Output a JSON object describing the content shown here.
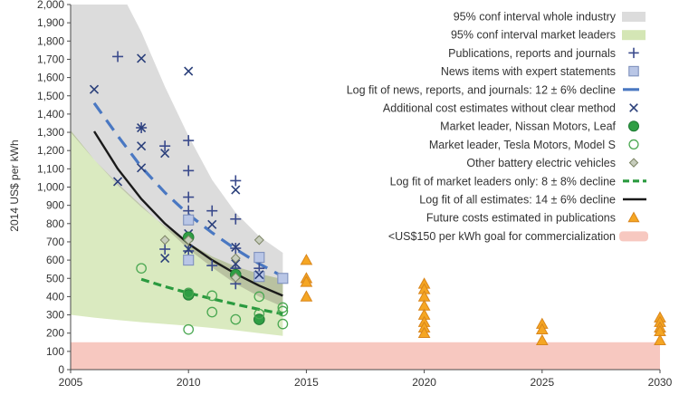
{
  "chart_data": {
    "type": "scatter",
    "title": "",
    "xlabel": "",
    "ylabel": "2014 US$ per kWh",
    "xlim": [
      2005,
      2030
    ],
    "ylim": [
      0,
      2000
    ],
    "x_ticks": [
      2005,
      2010,
      2015,
      2020,
      2025,
      2030
    ],
    "x_tick_labels": [
      "2005",
      "2010",
      "2015",
      "2020",
      "2025",
      "2030"
    ],
    "y_ticks": [
      0,
      100,
      200,
      300,
      400,
      500,
      600,
      700,
      800,
      900,
      1000,
      1100,
      1200,
      1300,
      1400,
      1500,
      1600,
      1700,
      1800,
      1900,
      2000
    ],
    "y_tick_labels": [
      "0",
      "100",
      "200",
      "300",
      "400",
      "500",
      "600",
      "700",
      "800",
      "900",
      "1,000",
      "1,100",
      "1,200",
      "1,300",
      "1,400",
      "1,500",
      "1,600",
      "1,700",
      "1,800",
      "1,900",
      "2,000"
    ],
    "grid": false,
    "legend_position": "top-right",
    "legend": [
      {
        "key": "band_industry",
        "label": "95% conf interval whole industry"
      },
      {
        "key": "band_leaders",
        "label": "95% conf interval market leaders"
      },
      {
        "key": "publications",
        "label": "Publications, reports and journals"
      },
      {
        "key": "news",
        "label": "News items with expert statements"
      },
      {
        "key": "fit_news",
        "label": "Log fit of news, reports, and journals: 12 ± 6% decline"
      },
      {
        "key": "additional",
        "label": "Additional cost estimates without clear method"
      },
      {
        "key": "nissan",
        "label": "Market leader, Nissan Motors, Leaf"
      },
      {
        "key": "tesla",
        "label": "Market leader, Tesla Motors, Model S"
      },
      {
        "key": "other_bev",
        "label": "Other battery electric vehicles"
      },
      {
        "key": "fit_leaders",
        "label": "Log fit of market leaders only: 8 ± 8% decline"
      },
      {
        "key": "fit_all",
        "label": "Log fit of all estimates: 14 ± 6% decline"
      },
      {
        "key": "future",
        "label": "Future costs estimated in publications"
      },
      {
        "key": "goal",
        "label": "<US$150 per kWh goal for commercialization"
      }
    ],
    "colors": {
      "axis": "#4a4a4a",
      "band_industry": "#dcdcdc",
      "band_leaders": "#d4e6b5",
      "overlap": "#b4bc9c",
      "publications": "#3a4a8c",
      "news": "#b9c6e6",
      "news_stroke": "#7f91bd",
      "fit_news": "#4a78c2",
      "additional": "#2a3f7a",
      "nissan": "#2f9e44",
      "nissan_stroke": "#1f7a34",
      "tesla": "#4ba852",
      "other_bev": "#c7cdbd",
      "other_bev_stroke": "#7c8464",
      "fit_leaders": "#2a9a3f",
      "fit_all": "#1a1a1a",
      "future": "#f5a623",
      "future_stroke": "#d9861c",
      "goal": "#f7c8c0"
    },
    "bands": {
      "industry": {
        "x": [
          2005,
          2006,
          2007,
          2008,
          2009,
          2010,
          2011,
          2012,
          2013,
          2014
        ],
        "upper": [
          2100,
          2100,
          2100,
          1850,
          1550,
          1280,
          1040,
          860,
          730,
          640
        ],
        "lower": [
          1300,
          1150,
          1020,
          900,
          780,
          660,
          560,
          470,
          400,
          345
        ]
      },
      "leaders": {
        "x": [
          2005,
          2006,
          2007,
          2008,
          2009,
          2010,
          2011,
          2012,
          2013,
          2014
        ],
        "upper": [
          1310,
          1150,
          1010,
          890,
          785,
          695,
          620,
          565,
          525,
          495
        ],
        "lower": [
          300,
          285,
          272,
          260,
          250,
          240,
          228,
          215,
          200,
          185
        ]
      }
    },
    "goal_band": {
      "y_min": 0,
      "y_max": 150,
      "x_min": 2005,
      "x_max": 2030
    },
    "series": [
      {
        "name": "Publications, reports and journals",
        "key": "publications",
        "marker": "plus",
        "points": [
          [
            2007,
            1715
          ],
          [
            2008,
            1325
          ],
          [
            2009,
            1225
          ],
          [
            2010,
            1255
          ],
          [
            2010,
            1090
          ],
          [
            2010,
            945
          ],
          [
            2010,
            870
          ],
          [
            2011,
            870
          ],
          [
            2012,
            1035
          ],
          [
            2012,
            825
          ],
          [
            2012,
            665
          ],
          [
            2012,
            555
          ],
          [
            2012,
            470
          ],
          [
            2013,
            555
          ],
          [
            2010,
            650
          ],
          [
            2011,
            570
          ],
          [
            2009,
            660
          ]
        ]
      },
      {
        "name": "News items with expert statements",
        "key": "news",
        "marker": "square",
        "points": [
          [
            2010,
            820
          ],
          [
            2010,
            600
          ],
          [
            2013,
            615
          ],
          [
            2013,
            510
          ],
          [
            2014,
            500
          ]
        ]
      },
      {
        "name": "Additional cost estimates without clear method",
        "key": "additional",
        "marker": "x",
        "points": [
          [
            2006,
            1535
          ],
          [
            2007,
            1030
          ],
          [
            2008,
            1705
          ],
          [
            2008,
            1325
          ],
          [
            2008,
            1225
          ],
          [
            2008,
            1105
          ],
          [
            2009,
            1185
          ],
          [
            2009,
            610
          ],
          [
            2010,
            1635
          ],
          [
            2010,
            660
          ],
          [
            2011,
            795
          ],
          [
            2012,
            985
          ],
          [
            2012,
            670
          ],
          [
            2013,
            520
          ],
          [
            2012,
            580
          ],
          [
            2010,
            745
          ]
        ]
      },
      {
        "name": "Market leader, Nissan Motors, Leaf",
        "key": "nissan",
        "marker": "filled-circle",
        "points": [
          [
            2010,
            725
          ],
          [
            2010,
            410
          ],
          [
            2012,
            520
          ],
          [
            2013,
            275
          ]
        ]
      },
      {
        "name": "Market leader, Tesla Motors, Model S",
        "key": "tesla",
        "marker": "open-circle",
        "points": [
          [
            2008,
            555
          ],
          [
            2010,
            420
          ],
          [
            2010,
            220
          ],
          [
            2011,
            405
          ],
          [
            2011,
            315
          ],
          [
            2012,
            275
          ],
          [
            2013,
            400
          ],
          [
            2013,
            305
          ],
          [
            2014,
            340
          ],
          [
            2014,
            320
          ],
          [
            2014,
            250
          ]
        ]
      },
      {
        "name": "Other battery electric vehicles",
        "key": "other_bev",
        "marker": "diamond",
        "points": [
          [
            2009,
            710
          ],
          [
            2010,
            710
          ],
          [
            2012,
            610
          ],
          [
            2013,
            710
          ],
          [
            2012,
            505
          ]
        ]
      },
      {
        "name": "Future costs estimated in publications",
        "key": "future",
        "marker": "triangle",
        "points": [
          [
            2015,
            600
          ],
          [
            2015,
            500
          ],
          [
            2015,
            480
          ],
          [
            2015,
            400
          ],
          [
            2020,
            470
          ],
          [
            2020,
            440
          ],
          [
            2020,
            400
          ],
          [
            2020,
            350
          ],
          [
            2020,
            300
          ],
          [
            2020,
            260
          ],
          [
            2020,
            230
          ],
          [
            2020,
            200
          ],
          [
            2025,
            250
          ],
          [
            2025,
            220
          ],
          [
            2025,
            160
          ],
          [
            2030,
            285
          ],
          [
            2030,
            260
          ],
          [
            2030,
            230
          ],
          [
            2030,
            210
          ],
          [
            2030,
            160
          ]
        ]
      }
    ],
    "fits": [
      {
        "name": "Log fit of news, reports, and journals: 12 ± 6% decline",
        "key": "fit_news",
        "style": "dashed-long",
        "x": [
          2006,
          2007,
          2008,
          2009,
          2010,
          2011,
          2012,
          2013,
          2014
        ],
        "y": [
          1460,
          1280,
          1110,
          970,
          850,
          750,
          660,
          580,
          510
        ]
      },
      {
        "name": "Log fit of market leaders only: 8 ± 8% decline",
        "key": "fit_leaders",
        "style": "dashed",
        "x": [
          2008,
          2009,
          2010,
          2011,
          2012,
          2013,
          2014
        ],
        "y": [
          495,
          455,
          420,
          388,
          358,
          330,
          305
        ]
      },
      {
        "name": "Log fit of all estimates: 14 ± 6% decline",
        "key": "fit_all",
        "style": "solid",
        "x": [
          2006,
          2007,
          2008,
          2009,
          2010,
          2011,
          2012,
          2013,
          2014
        ],
        "y": [
          1305,
          1100,
          935,
          800,
          690,
          600,
          525,
          460,
          405
        ]
      }
    ]
  }
}
